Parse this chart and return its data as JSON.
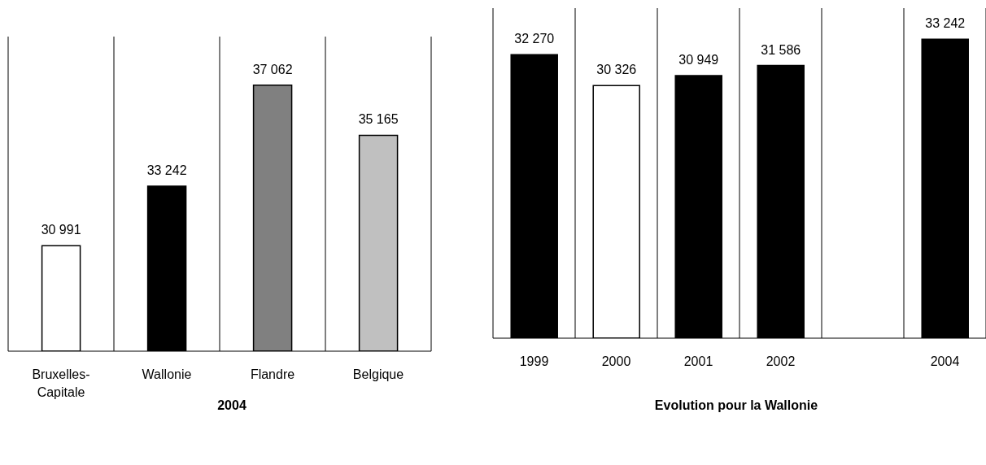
{
  "chart_data": [
    {
      "type": "bar",
      "title": "2004",
      "categories": [
        "Bruxelles-Capitale",
        "Wallonie",
        "Flandre",
        "Belgique"
      ],
      "values": [
        30991,
        33242,
        37062,
        35165
      ],
      "colors": [
        "#ffffff",
        "#000000",
        "#808080",
        "#c0c0c0"
      ],
      "value_labels": [
        "30 991",
        "33 242",
        "37 062",
        "35 165"
      ],
      "ylim": [
        27000,
        38900
      ],
      "tick_labels": "x",
      "grid": "x"
    },
    {
      "type": "bar",
      "title": "Evolution pour la Wallonie",
      "categories": [
        "1999",
        "2000",
        "2001",
        "2002",
        null,
        "2004"
      ],
      "values": [
        32270,
        30326,
        30949,
        31586,
        null,
        33242
      ],
      "colors": [
        "#000000",
        "#ffffff",
        "#000000",
        "#000000",
        "#000000",
        "#000000"
      ],
      "value_labels": [
        "32 270",
        "30 326",
        "30 949",
        "31 586",
        null,
        "33 242"
      ],
      "ylim": [
        14400,
        35200
      ],
      "tick_labels": "x",
      "grid": "x"
    }
  ]
}
